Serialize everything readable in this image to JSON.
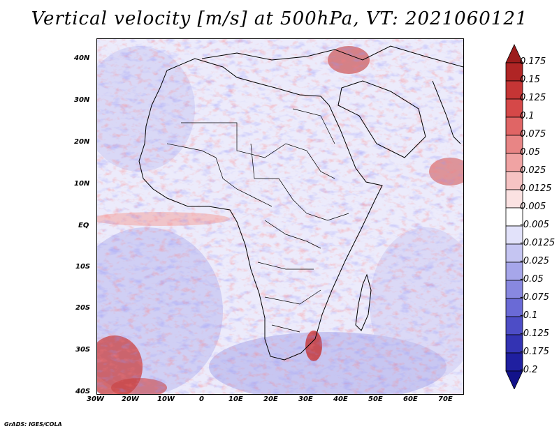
{
  "title": "Vertical velocity [m/s] at 500hPa, VT: 2021060121",
  "footer": "GrADS: IGES/COLA",
  "lat_labels": [
    "40N",
    "30N",
    "20N",
    "10N",
    "EQ",
    "10S",
    "20S",
    "30S",
    "40S"
  ],
  "lon_labels": [
    "30W",
    "20W",
    "10W",
    "0",
    "10E",
    "20E",
    "30E",
    "40E",
    "50E",
    "60E",
    "70E"
  ],
  "colorbar": {
    "labels": [
      "0.175",
      "0.15",
      "0.125",
      "0.1",
      "0.075",
      "0.05",
      "0.025",
      "0.0125",
      "0.005",
      "-0.005",
      "-0.0125",
      "-0.025",
      "-0.05",
      "-0.075",
      "-0.1",
      "-0.125",
      "-0.175",
      "-0.2"
    ],
    "colors": [
      "#9c1c1c",
      "#b02525",
      "#c53535",
      "#d54848",
      "#e06565",
      "#e88585",
      "#f0a3a3",
      "#f6c3c3",
      "#fbe2e2",
      "#ffffff",
      "#e2e2fa",
      "#c5c5f2",
      "#a6a6ea",
      "#8888e0",
      "#6a6ad6",
      "#4d4dc6",
      "#3333b3",
      "#1f1fa0",
      "#12128a"
    ]
  }
}
